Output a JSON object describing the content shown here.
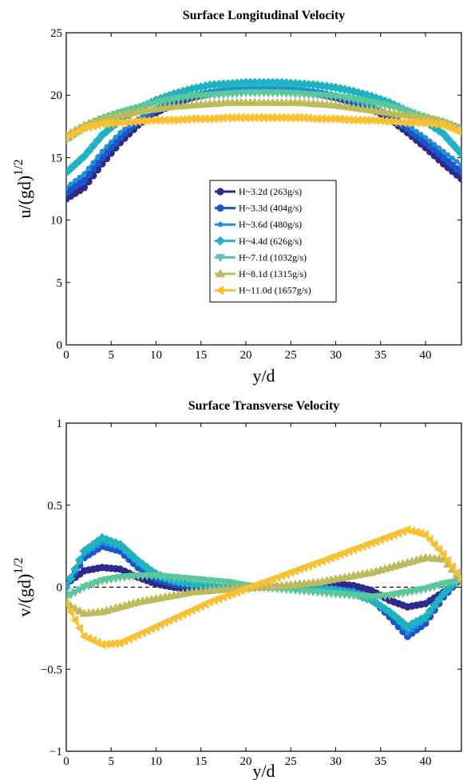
{
  "chart_data": [
    {
      "type": "line",
      "title": "Surface Longitudinal Velocity",
      "xlabel": "y/d",
      "ylabel_base": "u/(gd)",
      "ylabel_exp": "1/2",
      "xlim": [
        0,
        44
      ],
      "ylim": [
        0,
        25
      ],
      "xticks": [
        "0",
        "5",
        "10",
        "15",
        "20",
        "25",
        "30",
        "35",
        "40"
      ],
      "yticks": [
        "0",
        "5",
        "10",
        "15",
        "20",
        "25"
      ],
      "legend_position": "center",
      "x": [
        0,
        2,
        4,
        6,
        8,
        10,
        12,
        14,
        16,
        18,
        20,
        22,
        24,
        26,
        28,
        30,
        32,
        34,
        36,
        38,
        40,
        42,
        44
      ],
      "series": [
        {
          "name": "H~3.2d (263g/s)",
          "color": "#2e2a8c",
          "marker": "circle",
          "values": [
            11.7,
            12.6,
            14.5,
            16.2,
            17.6,
            18.6,
            19.3,
            19.8,
            20.1,
            20.3,
            20.4,
            20.4,
            20.4,
            20.3,
            20.1,
            19.8,
            19.4,
            18.9,
            18.1,
            17.0,
            15.8,
            14.5,
            13.3
          ]
        },
        {
          "name": "H~3.3d (404g/s)",
          "color": "#1a56c9",
          "marker": "circle",
          "values": [
            12.2,
            13.2,
            15.0,
            16.6,
            17.9,
            18.8,
            19.5,
            19.9,
            20.2,
            20.4,
            20.5,
            20.5,
            20.5,
            20.4,
            20.2,
            19.9,
            19.5,
            19.0,
            18.3,
            17.3,
            16.2,
            15.0,
            13.8
          ]
        },
        {
          "name": "H~3.6d (480g/s)",
          "color": "#1f8fd8",
          "marker": "dot",
          "values": [
            12.6,
            13.7,
            15.5,
            17.0,
            18.1,
            19.0,
            19.6,
            20.0,
            20.3,
            20.5,
            20.6,
            20.6,
            20.6,
            20.5,
            20.3,
            20.0,
            19.6,
            19.1,
            18.5,
            17.6,
            16.6,
            15.5,
            14.4
          ]
        },
        {
          "name": "H~4.4d (626g/s)",
          "color": "#1fb3c2",
          "marker": "diamond",
          "values": [
            13.8,
            15.1,
            16.8,
            18.0,
            18.9,
            19.6,
            20.1,
            20.5,
            20.8,
            20.9,
            21.0,
            21.0,
            21.0,
            20.9,
            20.8,
            20.6,
            20.3,
            19.9,
            19.4,
            18.7,
            17.9,
            16.9,
            15.3
          ]
        },
        {
          "name": "H~7.1d (1032g/s)",
          "color": "#5bc79a",
          "marker": "tri-down",
          "values": [
            16.4,
            17.4,
            18.1,
            18.6,
            19.0,
            19.4,
            19.7,
            19.9,
            20.0,
            20.1,
            20.2,
            20.2,
            20.2,
            20.1,
            20.0,
            19.9,
            19.7,
            19.4,
            19.1,
            18.7,
            18.2,
            17.8,
            17.3
          ]
        },
        {
          "name": "H~8.1d (1315g/s)",
          "color": "#bdbb5c",
          "marker": "tri-up",
          "values": [
            16.8,
            17.6,
            18.1,
            18.4,
            18.7,
            18.9,
            19.1,
            19.2,
            19.3,
            19.4,
            19.4,
            19.4,
            19.4,
            19.4,
            19.3,
            19.2,
            19.0,
            18.8,
            18.6,
            18.4,
            18.2,
            17.9,
            17.2
          ]
        },
        {
          "name": "H~11.0d (1657g/s)",
          "color": "#f9c034",
          "marker": "tri-left",
          "values": [
            16.6,
            17.4,
            17.7,
            17.8,
            17.9,
            18.0,
            18.0,
            18.1,
            18.1,
            18.2,
            18.2,
            18.2,
            18.2,
            18.2,
            18.1,
            18.1,
            18.0,
            18.0,
            17.9,
            17.8,
            17.8,
            17.6,
            17.0
          ]
        }
      ]
    },
    {
      "type": "line",
      "title": "Surface Transverse Velocity",
      "xlabel": "y/d",
      "ylabel_base": "v/(gd)",
      "ylabel_exp": "1/2",
      "xlim": [
        0,
        44
      ],
      "ylim": [
        -1,
        1
      ],
      "xticks": [
        "0",
        "5",
        "10",
        "15",
        "20",
        "25",
        "30",
        "35",
        "40"
      ],
      "yticks": [
        "−1",
        "−0.5",
        "0",
        "0.5",
        "1"
      ],
      "zero_line": "dashed",
      "x": [
        0,
        2,
        4,
        6,
        8,
        10,
        12,
        14,
        16,
        18,
        20,
        22,
        24,
        26,
        28,
        30,
        32,
        34,
        36,
        38,
        40,
        42,
        44
      ],
      "series": [
        {
          "name": "H~3.2d (263g/s)",
          "color": "#2e2a8c",
          "marker": "circle",
          "values": [
            0.02,
            0.1,
            0.12,
            0.11,
            0.06,
            0.02,
            0.0,
            -0.02,
            -0.02,
            -0.01,
            0.0,
            0.0,
            0.0,
            0.0,
            0.01,
            0.02,
            0.01,
            -0.02,
            -0.08,
            -0.12,
            -0.1,
            -0.03,
            0.05
          ]
        },
        {
          "name": "H~3.3d (404g/s)",
          "color": "#1a56c9",
          "marker": "circle",
          "values": [
            0.0,
            0.18,
            0.25,
            0.22,
            0.12,
            0.05,
            0.02,
            0.0,
            0.0,
            0.0,
            0.0,
            0.0,
            0.0,
            0.0,
            0.0,
            -0.01,
            -0.03,
            -0.07,
            -0.18,
            -0.3,
            -0.22,
            -0.06,
            0.06
          ]
        },
        {
          "name": "H~3.6d (480g/s)",
          "color": "#1f8fd8",
          "marker": "dot",
          "values": [
            0.02,
            0.2,
            0.27,
            0.24,
            0.14,
            0.06,
            0.03,
            0.01,
            0.0,
            0.0,
            0.0,
            0.0,
            0.0,
            0.0,
            0.0,
            -0.01,
            -0.02,
            -0.06,
            -0.15,
            -0.28,
            -0.2,
            -0.04,
            0.07
          ]
        },
        {
          "name": "H~4.4d (626g/s)",
          "color": "#1fb3c2",
          "marker": "diamond",
          "values": [
            0.0,
            0.22,
            0.3,
            0.26,
            0.16,
            0.08,
            0.04,
            0.02,
            0.01,
            0.0,
            0.0,
            0.0,
            0.0,
            0.0,
            -0.01,
            -0.02,
            -0.04,
            -0.08,
            -0.15,
            -0.24,
            -0.18,
            -0.04,
            0.07
          ]
        },
        {
          "name": "H~7.1d (1032g/s)",
          "color": "#5bc79a",
          "marker": "tri-down",
          "values": [
            -0.06,
            0.0,
            0.04,
            0.06,
            0.07,
            0.07,
            0.06,
            0.05,
            0.04,
            0.03,
            0.01,
            0.0,
            -0.01,
            -0.02,
            -0.03,
            -0.04,
            -0.05,
            -0.06,
            -0.05,
            -0.03,
            -0.01,
            0.02,
            0.04
          ]
        },
        {
          "name": "H~8.1d (1315g/s)",
          "color": "#bdbb5c",
          "marker": "tri-up",
          "values": [
            -0.1,
            -0.16,
            -0.15,
            -0.12,
            -0.09,
            -0.07,
            -0.05,
            -0.03,
            -0.02,
            -0.01,
            0.0,
            0.0,
            0.01,
            0.02,
            0.03,
            0.05,
            0.07,
            0.09,
            0.12,
            0.15,
            0.18,
            0.17,
            0.05
          ]
        },
        {
          "name": "H~11.0d (1657g/s)",
          "color": "#f9c034",
          "marker": "tri-left",
          "values": [
            -0.1,
            -0.3,
            -0.35,
            -0.34,
            -0.29,
            -0.24,
            -0.19,
            -0.14,
            -0.09,
            -0.05,
            -0.01,
            0.03,
            0.07,
            0.11,
            0.15,
            0.19,
            0.23,
            0.27,
            0.31,
            0.35,
            0.32,
            0.2,
            0.05
          ]
        }
      ]
    }
  ]
}
